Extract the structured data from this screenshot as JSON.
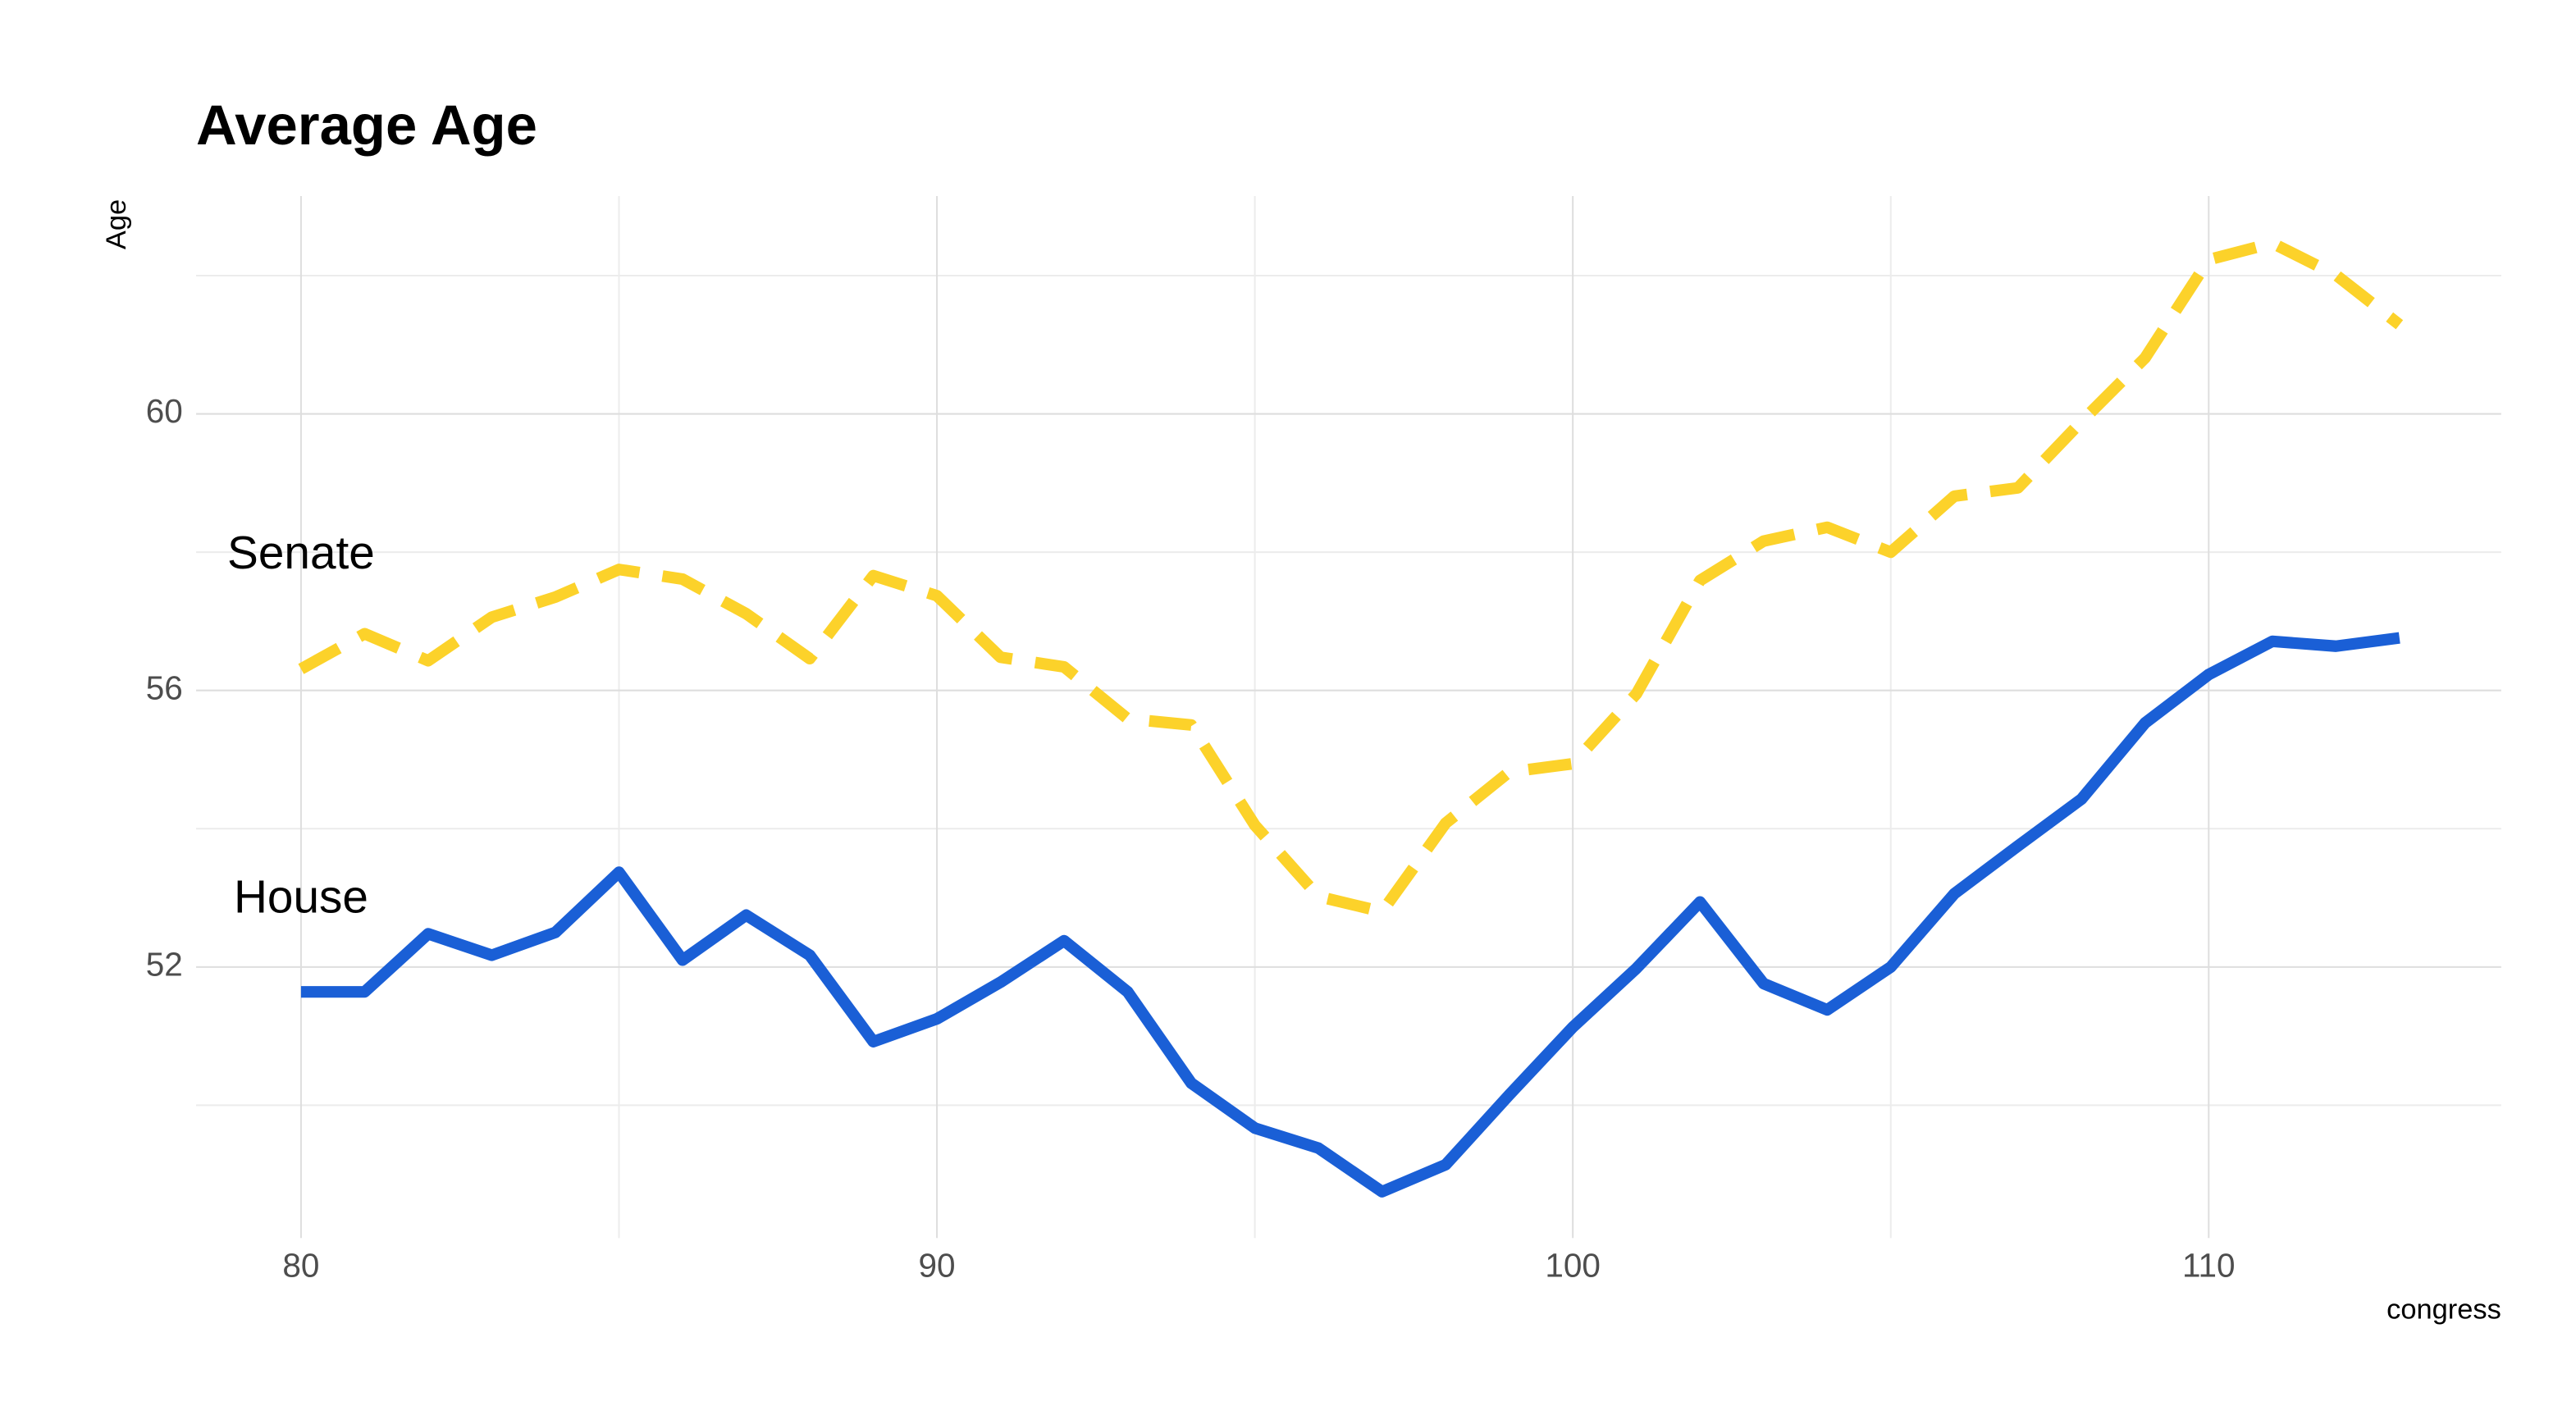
{
  "chart_data": {
    "type": "line",
    "title": "Average Age",
    "x_label": "congress",
    "y_label": "Age",
    "x": [
      80,
      81,
      82,
      83,
      84,
      85,
      86,
      87,
      88,
      89,
      90,
      91,
      92,
      93,
      94,
      95,
      96,
      97,
      98,
      99,
      100,
      101,
      102,
      103,
      104,
      105,
      106,
      107,
      108,
      109,
      110,
      111,
      112,
      113
    ],
    "series": [
      {
        "name": "Senate",
        "color": "#fcd22a",
        "dash": true,
        "values": [
          56.31,
          56.82,
          56.43,
          57.06,
          57.35,
          57.75,
          57.61,
          57.11,
          56.46,
          57.66,
          57.37,
          56.48,
          56.34,
          55.59,
          55.5,
          54.05,
          53.02,
          52.8,
          54.08,
          54.82,
          54.94,
          55.95,
          57.59,
          58.16,
          58.36,
          58.0,
          58.81,
          58.93,
          59.89,
          60.81,
          62.23,
          62.47,
          62.01,
          61.29
        ]
      },
      {
        "name": "House",
        "color": "#1a5fd6",
        "dash": false,
        "values": [
          51.64,
          51.64,
          52.48,
          52.17,
          52.5,
          53.37,
          52.1,
          52.75,
          52.17,
          50.92,
          51.25,
          51.78,
          52.38,
          51.64,
          50.32,
          49.67,
          49.38,
          48.75,
          49.14,
          50.15,
          51.13,
          51.98,
          52.94,
          51.76,
          51.38,
          52.0,
          53.06,
          53.75,
          54.43,
          55.53,
          56.23,
          56.71,
          56.64,
          56.76
        ]
      }
    ],
    "xlim": [
      78.35,
      114.6
    ],
    "ylim": [
      48.08,
      63.15
    ],
    "xticks": [
      80,
      90,
      100,
      110
    ],
    "yticks": [
      52,
      56,
      60
    ],
    "x_minor_ticks": [
      85,
      95,
      105
    ],
    "y_minor_ticks": [
      50,
      54,
      58,
      62
    ],
    "grid": true
  }
}
